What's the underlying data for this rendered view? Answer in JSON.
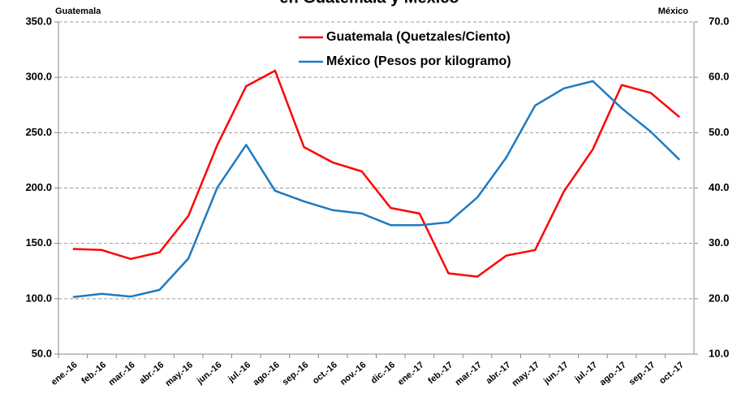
{
  "chart_data": {
    "type": "line",
    "title": "en Guatemala y México",
    "y_label": "Guatemala",
    "y2_label": "México",
    "categories": [
      "ene.-16",
      "feb.-16",
      "mar.-16",
      "abr.-16",
      "may.-16",
      "jun.-16",
      "jul.-16",
      "ago.-16",
      "sep.-16",
      "oct.-16",
      "nov.-16",
      "dic.-16",
      "ene.-17",
      "feb.-17",
      "mar.-17",
      "abr.-17",
      "may.-17",
      "jun.-17",
      "jul.-17",
      "ago.-17",
      "sep.-17",
      "oct.-17"
    ],
    "series": [
      {
        "name": "Guatemala (Quetzales/Ciento)",
        "color": "#ff0000",
        "values": [
          145,
          144,
          136,
          142,
          175,
          239,
          292,
          306,
          237,
          223,
          215,
          182,
          177,
          123,
          120,
          139,
          144,
          197,
          235,
          293,
          286,
          264
        ]
      },
      {
        "name": "México (Pesos por kilogramo)",
        "color": "#1f7bc1",
        "axis": "y2",
        "values": [
          20.3,
          20.9,
          20.4,
          21.6,
          27.3,
          40.1,
          47.8,
          39.5,
          37.6,
          36.0,
          35.4,
          33.3,
          33.3,
          33.8,
          38.3,
          45.5,
          54.9,
          58.0,
          59.3,
          54.4,
          50.2,
          45.1
        ]
      }
    ],
    "ylim": [
      50,
      350
    ],
    "yticks": [
      {
        "value": 50,
        "label": "50.0"
      },
      {
        "value": 100,
        "label": "100.0"
      },
      {
        "value": 150,
        "label": "150.0"
      },
      {
        "value": 200,
        "label": "200.0"
      },
      {
        "value": 250,
        "label": "250.0"
      },
      {
        "value": 300,
        "label": "300.0"
      },
      {
        "value": 350,
        "label": "350.0"
      }
    ],
    "y2lim": [
      10,
      70
    ],
    "y2ticks": [
      {
        "value": 10,
        "label": "10.0"
      },
      {
        "value": 20,
        "label": "20.0"
      },
      {
        "value": 30,
        "label": "30.0"
      },
      {
        "value": 40,
        "label": "40.0"
      },
      {
        "value": 50,
        "label": "50.0"
      },
      {
        "value": 60,
        "label": "60.0"
      },
      {
        "value": 70,
        "label": "70.0"
      }
    ],
    "grid": true,
    "legend": "top"
  }
}
